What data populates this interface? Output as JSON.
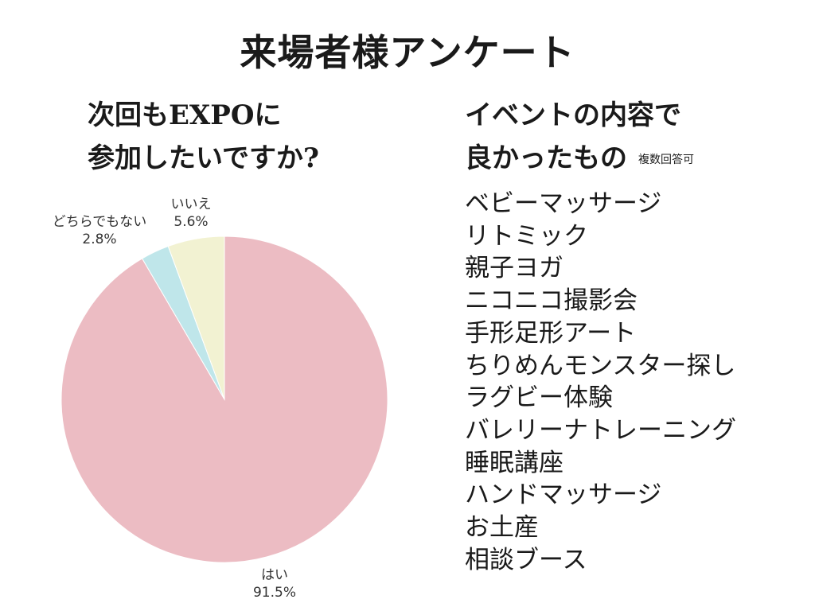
{
  "title": "来場者様アンケート",
  "question1": {
    "line1": "次回もEXPOに",
    "line2": "参加したいですか?"
  },
  "question2": {
    "line1": "イベントの内容で",
    "line2": "良かったもの",
    "note": "複数回答可",
    "items": [
      "ベビーマッサージ",
      "リトミック",
      "親子ヨガ",
      "ニコニコ撮影会",
      "手形足形アート",
      "ちりめんモンスター探し",
      "ラグビー体験",
      "バレリーナトレーニング",
      "睡眠講座",
      "ハンドマッサージ",
      "お土産",
      "相談ブース"
    ]
  },
  "chart_data": {
    "type": "pie",
    "title": "",
    "slices": [
      {
        "label": "はい",
        "value": 91.5,
        "value_label": "91.5%",
        "color": "#ecbcc3"
      },
      {
        "label": "どちらでもない",
        "value": 2.8,
        "value_label": "2.8%",
        "color": "#bfe6ea"
      },
      {
        "label": "いいえ",
        "value": 5.6,
        "value_label": "5.6%",
        "color": "#f2f2d2"
      }
    ]
  }
}
